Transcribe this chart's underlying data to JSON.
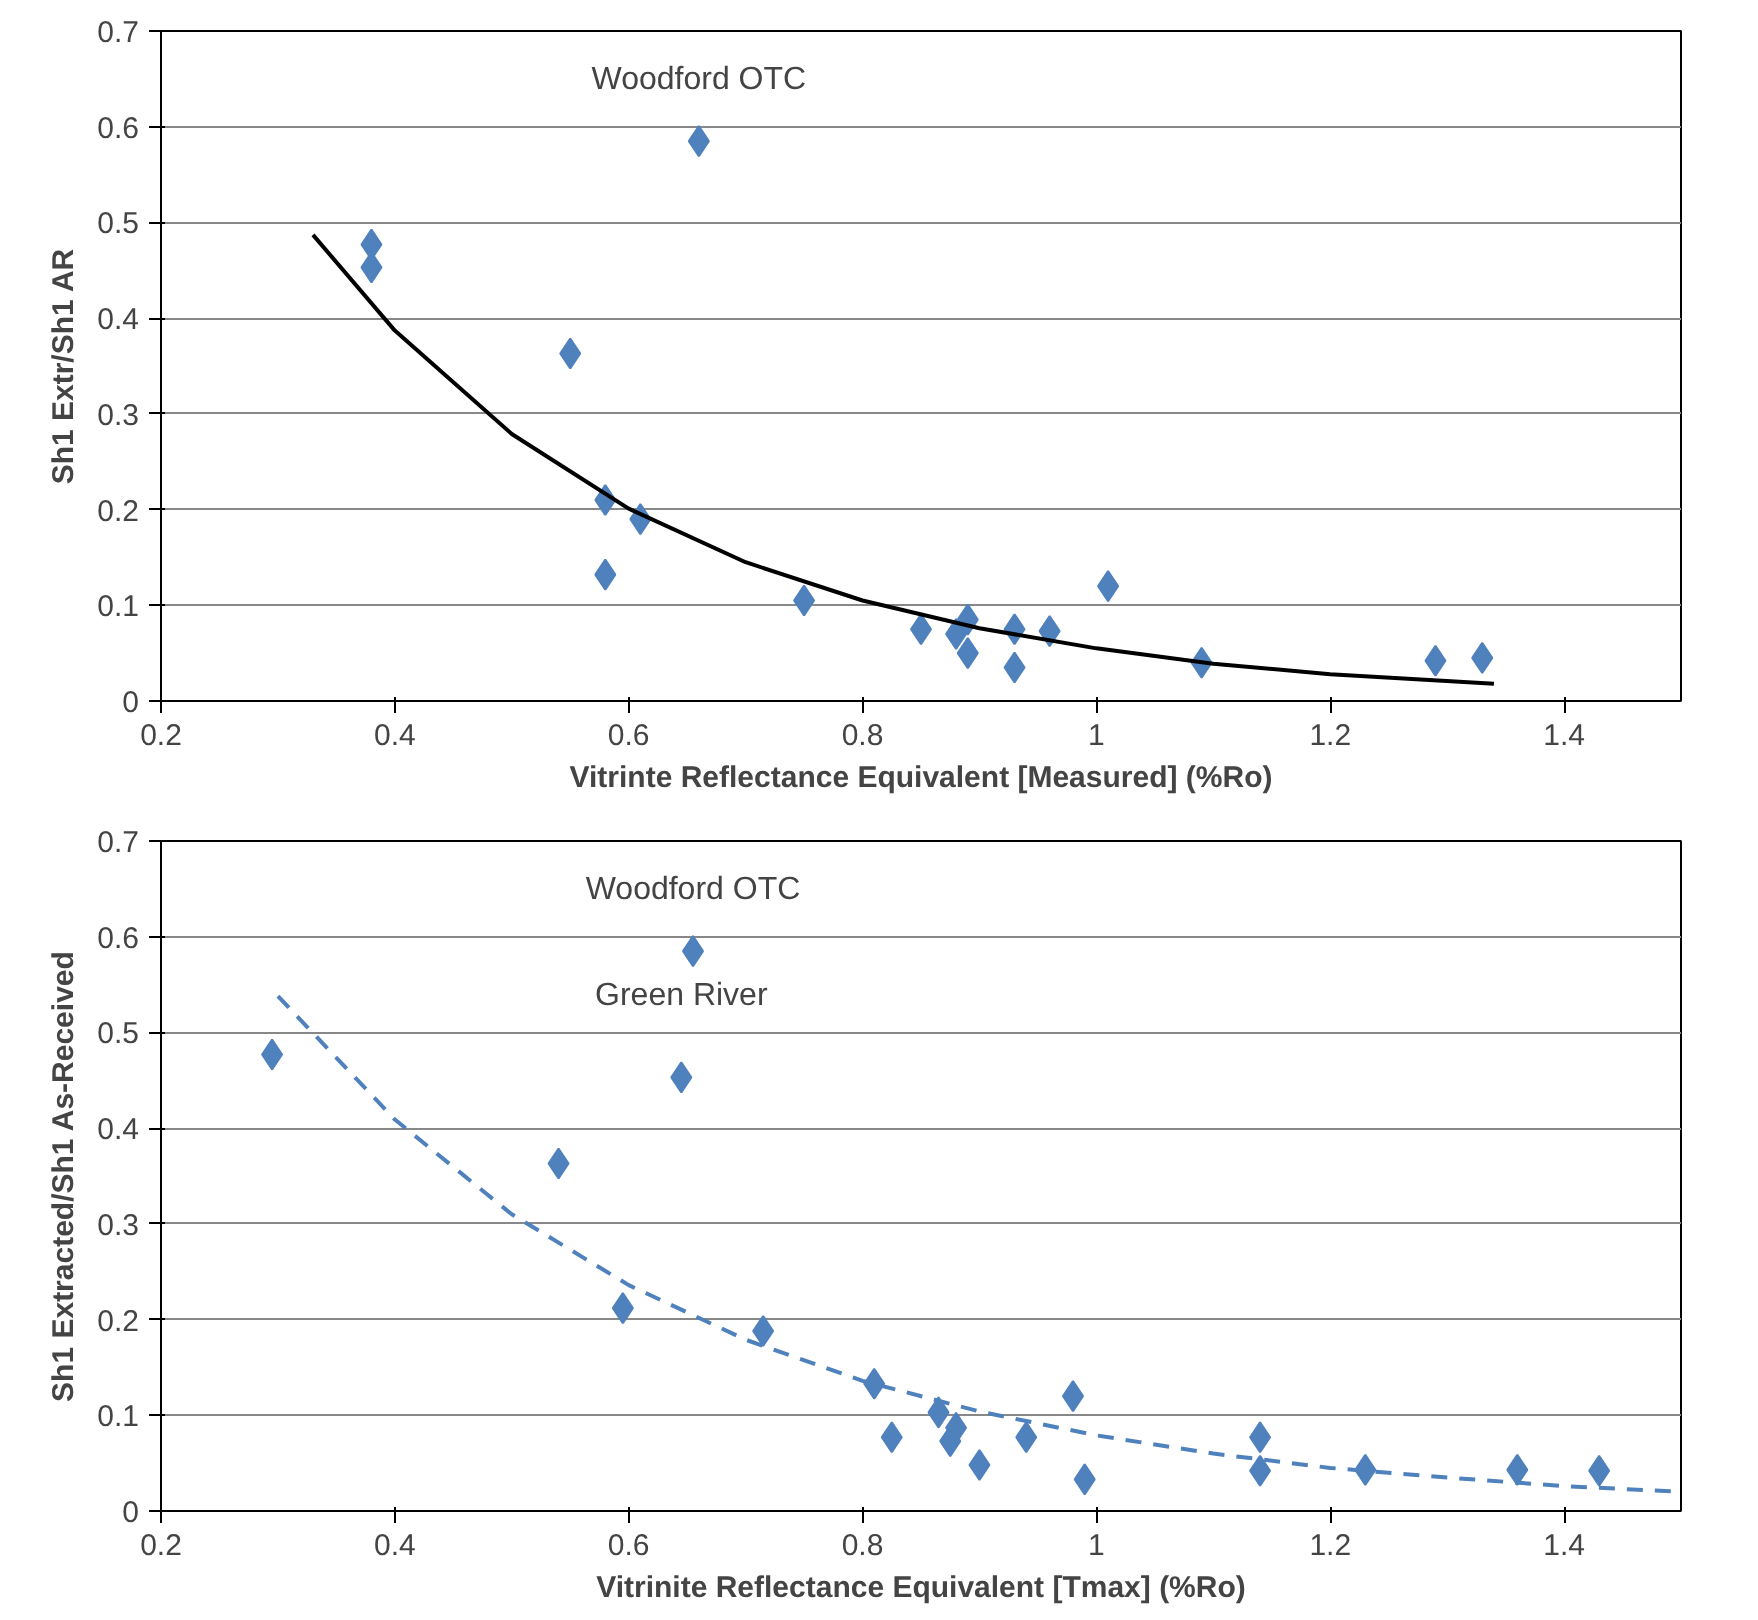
{
  "chart_data": [
    {
      "type": "scatter",
      "xlabel": "Vitrinte Reflectance Equivalent [Measured] (%Ro)",
      "ylabel": "Sh1 Extr/Sh1 AR",
      "xlim": [
        0.2,
        1.5
      ],
      "ylim": [
        0,
        0.7
      ],
      "xticks": [
        0.2,
        0.4,
        0.6,
        0.8,
        1,
        1.2,
        1.4
      ],
      "yticks": [
        0,
        0.1,
        0.2,
        0.3,
        0.4,
        0.5,
        0.6,
        0.7
      ],
      "grid": "y",
      "annotations": [
        {
          "text": "Woodford OTC",
          "x": 0.66,
          "y": 0.585
        }
      ],
      "series": [
        {
          "marker": "diamond",
          "color": "#4f81bd",
          "x": [
            0.38,
            0.38,
            0.55,
            0.66,
            0.58,
            0.61,
            0.58,
            0.75,
            0.85,
            0.88,
            0.89,
            0.89,
            0.93,
            0.93,
            0.96,
            1.01,
            1.09,
            1.29,
            1.33
          ],
          "values": [
            0.477,
            0.453,
            0.363,
            0.585,
            0.21,
            0.19,
            0.132,
            0.105,
            0.075,
            0.07,
            0.085,
            0.05,
            0.075,
            0.035,
            0.073,
            0.12,
            0.04,
            0.042,
            0.045
          ]
        },
        {
          "type": "line",
          "color": "#000000",
          "line_style": "solid",
          "x": [
            0.33,
            0.4,
            0.5,
            0.6,
            0.7,
            0.8,
            0.9,
            1.0,
            1.1,
            1.2,
            1.34
          ],
          "values": [
            0.487,
            0.387,
            0.279,
            0.201,
            0.145,
            0.105,
            0.076,
            0.055,
            0.039,
            0.028,
            0.018
          ]
        }
      ]
    },
    {
      "type": "scatter",
      "xlabel": "Vitrinite Reflectance Equivalent [Tmax] (%Ro)",
      "ylabel": "Sh1 Extracted/Sh1 As-Received",
      "xlim": [
        0.2,
        1.5
      ],
      "ylim": [
        0,
        0.7
      ],
      "xticks": [
        0.2,
        0.4,
        0.6,
        0.8,
        1,
        1.2,
        1.4
      ],
      "yticks": [
        0,
        0.1,
        0.2,
        0.3,
        0.4,
        0.5,
        0.6,
        0.7
      ],
      "grid": "y",
      "annotations": [
        {
          "text": "Woodford OTC",
          "x": 0.655,
          "y": 0.585
        },
        {
          "text": "Green River",
          "x": 0.645,
          "y": 0.453
        }
      ],
      "series": [
        {
          "marker": "diamond",
          "color": "#4f81bd",
          "x": [
            0.295,
            0.54,
            0.645,
            0.655,
            0.595,
            0.715,
            0.81,
            0.825,
            0.865,
            0.875,
            0.88,
            0.9,
            0.94,
            0.98,
            0.99,
            1.14,
            1.14,
            1.23,
            1.36,
            1.43
          ],
          "values": [
            0.477,
            0.363,
            0.453,
            0.585,
            0.212,
            0.188,
            0.133,
            0.077,
            0.103,
            0.073,
            0.087,
            0.048,
            0.077,
            0.12,
            0.033,
            0.077,
            0.042,
            0.043,
            0.043,
            0.042
          ]
        },
        {
          "type": "line",
          "color": "#4f81bd",
          "line_style": "dashed",
          "x": [
            0.3,
            0.4,
            0.5,
            0.6,
            0.7,
            0.8,
            0.9,
            1.0,
            1.1,
            1.2,
            1.3,
            1.4,
            1.5
          ],
          "values": [
            0.538,
            0.409,
            0.31,
            0.236,
            0.179,
            0.136,
            0.104,
            0.079,
            0.06,
            0.045,
            0.035,
            0.026,
            0.02
          ]
        }
      ]
    }
  ]
}
